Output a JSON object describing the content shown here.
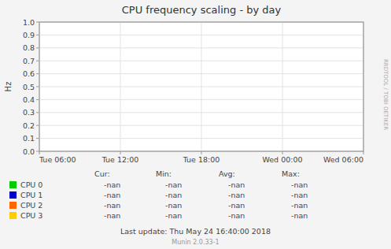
{
  "chart_data": {
    "type": "line",
    "title": "CPU frequency scaling - by day",
    "ylabel": "Hz",
    "categories": [
      "Tue 06:00",
      "Tue 12:00",
      "Tue 18:00",
      "Wed 00:00",
      "Wed 06:00"
    ],
    "ylim": [
      0.0,
      1.0
    ],
    "yticks": [
      {
        "value": 0.0,
        "label": "0.0"
      },
      0.1,
      0.2,
      0.3,
      0.4,
      0.5,
      0.6,
      0.7,
      0.8,
      0.9,
      {
        "value": 1.0,
        "label": "1.0"
      }
    ],
    "grid": true,
    "stat_headers": [
      "Cur:",
      "Min:",
      "Avg:",
      "Max:"
    ],
    "series": [
      {
        "name": "CPU 0",
        "color": "#00cc00",
        "values": [
          null,
          null,
          null,
          null,
          null
        ],
        "stats": [
          "-nan",
          "-nan",
          "-nan",
          "-nan"
        ]
      },
      {
        "name": "CPU 1",
        "color": "#0000cc",
        "values": [
          null,
          null,
          null,
          null,
          null
        ],
        "stats": [
          "-nan",
          "-nan",
          "-nan",
          "-nan"
        ]
      },
      {
        "name": "CPU 2",
        "color": "#ff6600",
        "values": [
          null,
          null,
          null,
          null,
          null
        ],
        "stats": [
          "-nan",
          "-nan",
          "-nan",
          "-nan"
        ]
      },
      {
        "name": "CPU 3",
        "color": "#ffcc00",
        "values": [
          null,
          null,
          null,
          null,
          null
        ],
        "stats": [
          "-nan",
          "-nan",
          "-nan",
          "-nan"
        ]
      }
    ],
    "annotations": [
      "Last update:  Thu May 24 16:40:00 2018",
      "Munin 2.0.33-1",
      "RRDTOOL / TOBI OETIKER"
    ]
  }
}
